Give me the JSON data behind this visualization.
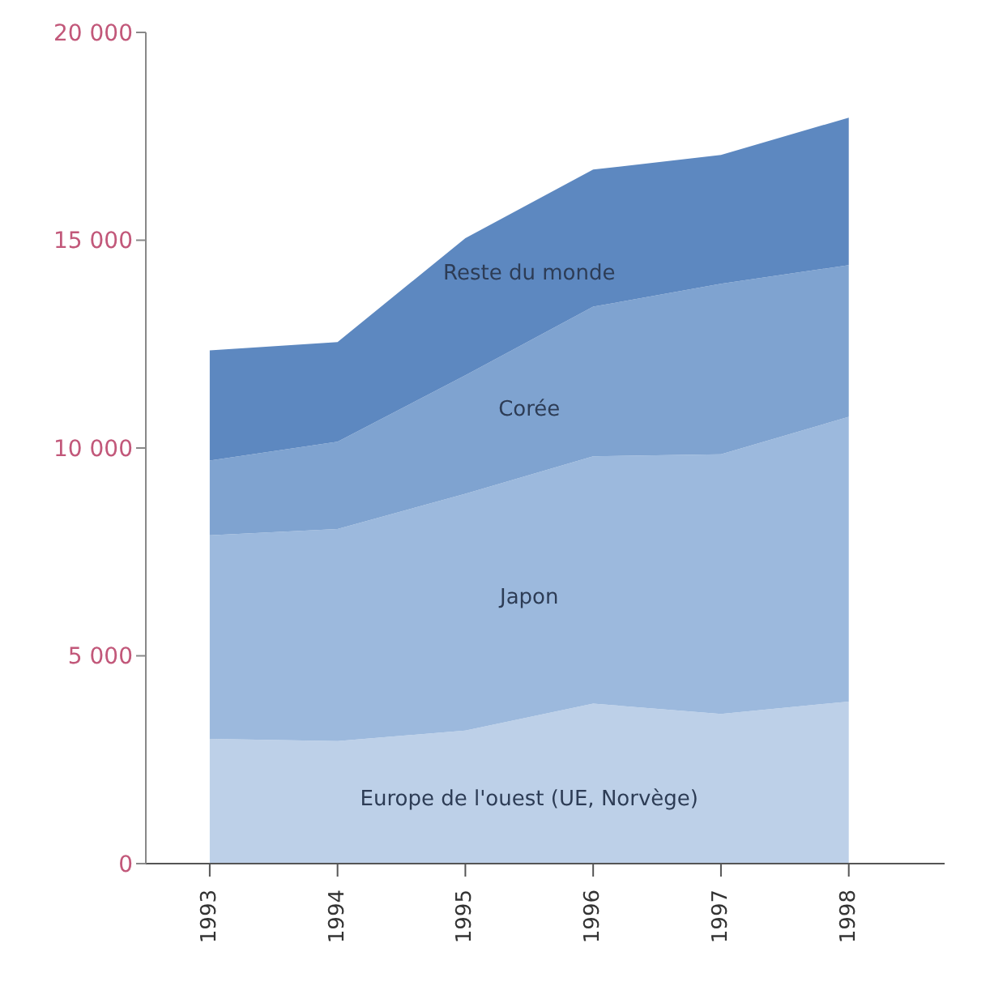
{
  "chart_data": {
    "type": "area",
    "stacked": true,
    "categories": [
      "1993",
      "1994",
      "1995",
      "1996",
      "1997",
      "1998"
    ],
    "series": [
      {
        "name": "Europe de l'ouest (UE, Norvège)",
        "color": "#bdd0e8",
        "values": [
          3000,
          2950,
          3200,
          3850,
          3600,
          3900
        ]
      },
      {
        "name": "Japon",
        "color": "#9cb9dd",
        "values": [
          4900,
          5100,
          5700,
          5950,
          6250,
          6850
        ]
      },
      {
        "name": "Corée",
        "color": "#7fa3d0",
        "values": [
          1800,
          2100,
          2850,
          3600,
          4100,
          3650
        ]
      },
      {
        "name": "Reste du monde",
        "color": "#5d88c0",
        "values": [
          2650,
          2400,
          3300,
          3300,
          3100,
          3550
        ]
      }
    ],
    "ylim": [
      0,
      20000
    ],
    "yticks": [
      {
        "value": 0,
        "label": "0"
      },
      {
        "value": 5000,
        "label": "5 000"
      },
      {
        "value": 10000,
        "label": "10 000"
      },
      {
        "value": 15000,
        "label": "15 000"
      },
      {
        "value": 20000,
        "label": "20 000"
      }
    ],
    "grid": false,
    "legend": false
  }
}
